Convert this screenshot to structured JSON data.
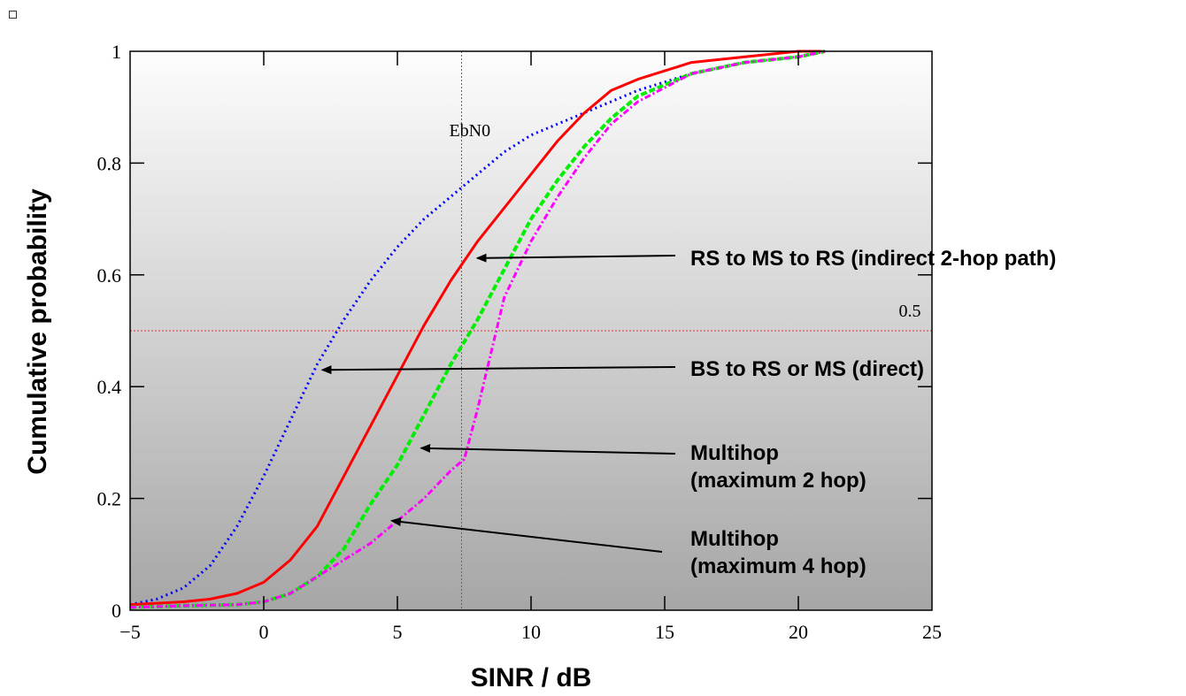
{
  "chart_data": {
    "type": "line",
    "title": "",
    "xlabel": "SINR / dB",
    "ylabel": "Cumulative probability",
    "xlim": [
      -5,
      25
    ],
    "ylim": [
      0,
      1
    ],
    "x_ticks": [
      "−5",
      "0",
      "5",
      "10",
      "15",
      "20",
      "25"
    ],
    "y_ticks": [
      "0",
      "0.2",
      "0.4",
      "0.6",
      "0.8",
      "1"
    ],
    "grid": false,
    "legend": "none",
    "background": "gradient-light-to-dark-gray",
    "reference_lines": [
      {
        "orientation": "vertical",
        "value": 7.4,
        "label": "EbN0",
        "color": "#e03030"
      },
      {
        "orientation": "horizontal",
        "value": 0.5,
        "label": "0.5",
        "color": "#e03030"
      }
    ],
    "series": [
      {
        "color": "#0000ff",
        "style": "dotted",
        "x": [
          -5,
          -4,
          -3,
          -2,
          -1,
          0,
          1,
          2,
          3,
          4,
          5,
          6,
          7,
          8,
          9,
          10,
          12,
          14,
          16,
          18,
          20
        ],
        "y": [
          0.01,
          0.02,
          0.04,
          0.08,
          0.15,
          0.24,
          0.34,
          0.44,
          0.52,
          0.59,
          0.65,
          0.7,
          0.74,
          0.78,
          0.82,
          0.85,
          0.89,
          0.93,
          0.96,
          0.98,
          0.99
        ]
      },
      {
        "color": "#ff0000",
        "style": "solid",
        "x": [
          -5,
          -3,
          -2,
          -1,
          0,
          1,
          2,
          3,
          4,
          5,
          6,
          7,
          8,
          9,
          10,
          11,
          12,
          13,
          14,
          16,
          18,
          20,
          21
        ],
        "y": [
          0.01,
          0.015,
          0.02,
          0.03,
          0.05,
          0.09,
          0.15,
          0.24,
          0.33,
          0.42,
          0.51,
          0.59,
          0.66,
          0.72,
          0.78,
          0.84,
          0.89,
          0.93,
          0.95,
          0.98,
          0.99,
          1.0,
          1.0
        ]
      },
      {
        "color": "#00ee00",
        "style": "dashed",
        "x": [
          -5,
          -3,
          -1,
          0,
          1,
          2,
          3,
          4,
          5,
          6,
          7,
          8,
          9,
          10,
          11,
          12,
          13,
          14,
          16,
          18,
          20,
          21
        ],
        "y": [
          0.005,
          0.008,
          0.01,
          0.015,
          0.03,
          0.06,
          0.11,
          0.19,
          0.26,
          0.35,
          0.44,
          0.52,
          0.61,
          0.7,
          0.77,
          0.83,
          0.88,
          0.92,
          0.96,
          0.98,
          0.99,
          1.0
        ]
      },
      {
        "color": "#ff00ff",
        "style": "dashdot",
        "x": [
          -5,
          -3,
          -1,
          0,
          1,
          2,
          3,
          4,
          5,
          6,
          7,
          7.5,
          8,
          8.5,
          9,
          10,
          11,
          12,
          13,
          14,
          16,
          18,
          20,
          21
        ],
        "y": [
          0.005,
          0.008,
          0.01,
          0.015,
          0.03,
          0.06,
          0.09,
          0.12,
          0.16,
          0.2,
          0.25,
          0.27,
          0.36,
          0.46,
          0.56,
          0.66,
          0.74,
          0.81,
          0.87,
          0.91,
          0.96,
          0.98,
          0.99,
          1.0
        ]
      }
    ],
    "annotations": [
      {
        "text": "RS to MS to RS (indirect 2-hop path)",
        "lines": [
          "RS to MS to RS (indirect 2-hop path)"
        ],
        "points_to": {
          "x": 8,
          "y": 0.63
        }
      },
      {
        "text": "BS to RS or MS (direct)",
        "lines": [
          "BS to RS or MS (direct)"
        ],
        "points_to": {
          "x": 2.2,
          "y": 0.43
        }
      },
      {
        "text": "Multihop (maximum 2 hop)",
        "lines": [
          "Multihop",
          "(maximum 2 hop)"
        ],
        "points_to": {
          "x": 5.9,
          "y": 0.29
        }
      },
      {
        "text": "Multihop (maximum 4 hop)",
        "lines": [
          "Multihop",
          "(maximum 4 hop)"
        ],
        "points_to": {
          "x": 4.8,
          "y": 0.16
        }
      }
    ]
  }
}
